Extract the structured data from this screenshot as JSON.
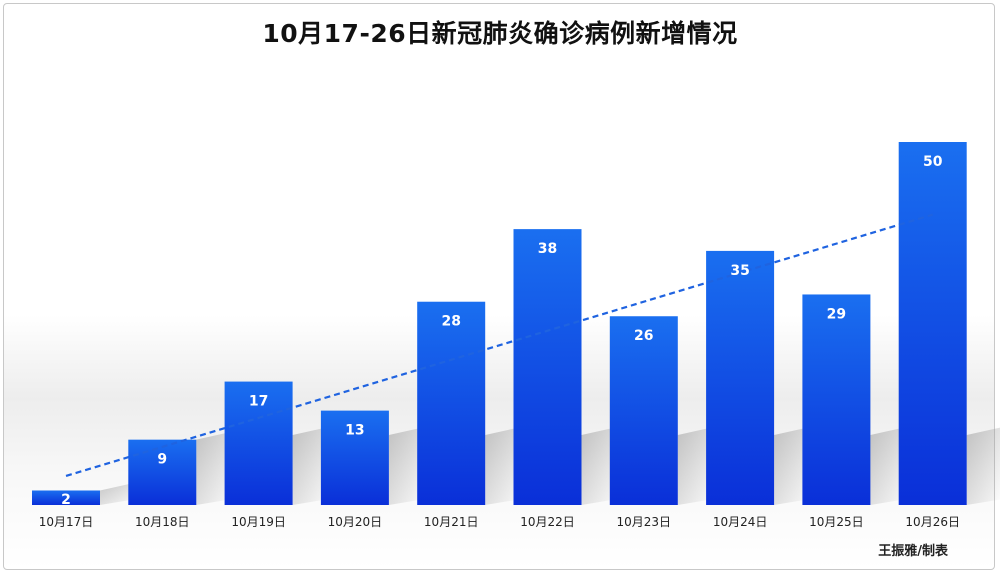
{
  "chart_data": {
    "type": "bar",
    "title": "10月17-26日新冠肺炎确诊病例新增情况",
    "categories": [
      "10月17日",
      "10月18日",
      "10月19日",
      "10月20日",
      "10月21日",
      "10月22日",
      "10月23日",
      "10月24日",
      "10月25日",
      "10月26日"
    ],
    "values": [
      2,
      9,
      17,
      13,
      28,
      38,
      26,
      35,
      29,
      50
    ],
    "data_labels": [
      "2",
      "9",
      "17",
      "13",
      "28",
      "38",
      "26",
      "35",
      "29",
      "50"
    ],
    "trendline": {
      "type": "linear",
      "style": "dashed",
      "start": 4,
      "end": 40
    },
    "ylim": [
      0,
      52
    ],
    "grid": false,
    "colors": {
      "bar_top": "#1a6ff0",
      "bar_bottom": "#0a2fd8",
      "trendline": "#1f63e0"
    }
  },
  "credit": "王振雅/制表"
}
